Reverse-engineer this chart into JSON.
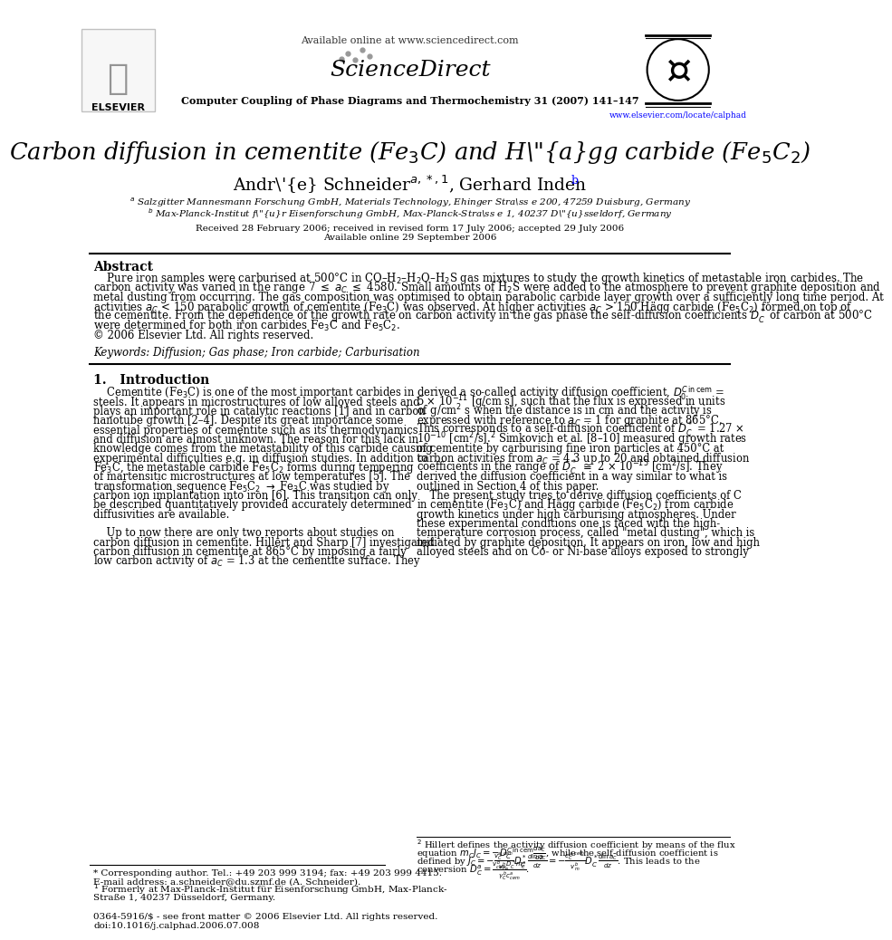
{
  "background_color": "#ffffff",
  "header_available": "Available online at www.sciencedirect.com",
  "header_journal": "Computer Coupling of Phase Diagrams and Thermochemistry 31 (2007) 141–147",
  "header_website": "www.elsevier.com/locate/calphad",
  "title": "Carbon diffusion in cementite (Fe$_3$C) and Hägg carbide (Fe$_5$C$_2$)",
  "author_line": "André Schneider$^{a,*,1}$, Gerhard Inden",
  "author_b_super": "$^{b}$",
  "affil_a": "$^a$ Salzgitter Mannesmann Forschung GmbH, Materials Technology, Ehinger Straße 200, 47259 Duisburg, Germany",
  "affil_b": "$^b$ Max-Planck-Institut für Eisenforschung GmbH, Max-Planck-Straße 1, 40237 Düsseldorf, Germany",
  "received": "Received 28 February 2006; received in revised form 17 July 2006; accepted 29 July 2006",
  "available": "Available online 29 September 2006",
  "abstract_title": "Abstract",
  "abstract_lines": [
    "    Pure iron samples were carburised at 500°C in CO–H$_2$–H$_2$O–H$_2$S gas mixtures to study the growth kinetics of metastable iron carbides. The",
    "carbon activity was varied in the range 7 $\\leq$ $a_C$ $\\leq$ 4580. Small amounts of H$_2$S were added to the atmosphere to prevent graphite deposition and",
    "metal dusting from occurring. The gas composition was optimised to obtain parabolic carbide layer growth over a sufficiently long time period. At",
    "activities $a_C$ < 150 parabolic growth of cementite (Fe$_3$C) was observed. At higher activities $a_C$ > 150 Hägg carbide (Fe$_5$C$_2$) formed on top of",
    "the cementite. From the dependence of the growth rate on carbon activity in the gas phase the self-diffusion coefficients $D^*_C$ of carbon at 500°C",
    "were determined for both iron carbides Fe$_3$C and Fe$_5$C$_2$.",
    "© 2006 Elsevier Ltd. All rights reserved."
  ],
  "keywords": "Keywords: Diffusion; Gas phase; Iron carbide; Carburisation",
  "sec1_title": "1.   Introduction",
  "left_col_lines": [
    "    Cementite (Fe$_3$C) is one of the most important carbides in",
    "steels. It appears in microstructures of low alloyed steels and",
    "plays an important role in catalytic reactions [1] and in carbon",
    "nanotube growth [2–4]. Despite its great importance some",
    "essential properties of cementite such as its thermodynamics",
    "and diffusion are almost unknown. The reason for this lack in",
    "knowledge comes from the metastability of this carbide causing",
    "experimental difficulties e.g. in diffusion studies. In addition to",
    "Fe$_3$C, the metastable carbide Fe$_5$C$_2$ forms during tempering",
    "of martensitic microstructures at low temperatures [5]. The",
    "transformation sequence Fe$_5$C$_2$ $\\rightarrow$ Fe$_3$C was studied by",
    "carbon ion implantation into iron [6]. This transition can only",
    "be described quantitatively provided accurately determined",
    "diffusivities are available.",
    "",
    "    Up to now there are only two reports about studies on",
    "carbon diffusion in cementite. Hillert and Sharp [7] investigated",
    "carbon diffusion in cementite at 865°C by imposing a fairly",
    "low carbon activity of $a_C$ = 1.3 at the cementite surface. They"
  ],
  "right_col_lines": [
    "derived a so-called activity diffusion coefficient, $D_0^{C\\,\\mathrm{in\\,cem}}$ =",
    "5 $\\times$ 10$^{-11}$ [g/cm s], such that the flux is expressed in units",
    "of g/cm$^2$ s when the distance is in cm and the activity is",
    "expressed with reference to $a_C$ = 1 for graphite at 865°C.",
    "This corresponds to a self-diffusion coefficient of $D^*_C$ = 1.27 $\\times$",
    "10$^{-10}$ [cm$^2$/s].$^2$ Simkovich et al. [8–10] measured growth rates",
    "of cementite by carburising fine iron particles at 450°C at",
    "carbon activities from $a_C$ = 4.3 up to 20 and obtained diffusion",
    "coefficients in the range of $D^*_C$ $\\cong$ 2 $\\times$ 10$^{-15}$ [cm$^2$/s]. They",
    "derived the diffusion coefficient in a way similar to what is",
    "outlined in Section 4 of this paper.",
    "    The present study tries to derive diffusion coefficients of C",
    "in cementite (Fe$_3$C) and Hägg carbide (Fe$_5$C$_2$) from carbide",
    "growth kinetics under high carburising atmospheres. Under",
    "these experimental conditions one is faced with the high-",
    "temperature corrosion process, called \"metal dusting\", which is",
    "initiated by graphite deposition. It appears on iron, low and high",
    "alloyed steels and on Co- or Ni-base alloys exposed to strongly"
  ],
  "fn_left_lines": [
    "* Corresponding author. Tel.: +49 203 999 3194; fax: +49 203 999 4415.",
    "E-mail address: a.schneider@du.szmf.de (A. Schneider).",
    "$^1$ Formerly at Max-Planck-Institut für Eisenforschung GmbH, Max-Planck-",
    "Straße 1, 40237 Düsseldorf, Germany."
  ],
  "fn_right_lines": [
    "$^2$ Hillert defines the activity diffusion coefficient by means of the flux",
    "equation $m_C J_C = -D_C^{C\\,\\mathrm{in\\,cem}}\\frac{da_C}{dz}$, while the self-diffusion coefficient is",
    "defined by $J_C = -\\frac{v_C^{a,cem}}{v_{Fe}^b} D^*_C \\frac{d\\ln a_C}{dz} = -\\frac{c_C^{a,cem}}{v_m^b} D^*_C \\frac{d\\ln a_C}{dz}$. This leads to the",
    "conversion $D^a_C = \\frac{v_{cem}^b D^*_C m_C^a}{\\gamma_C^b c_{cem}^a}$."
  ],
  "issn": "0364-5916/$ - see front matter © 2006 Elsevier Ltd. All rights reserved.",
  "doi": "doi:10.1016/j.calphad.2006.07.008"
}
